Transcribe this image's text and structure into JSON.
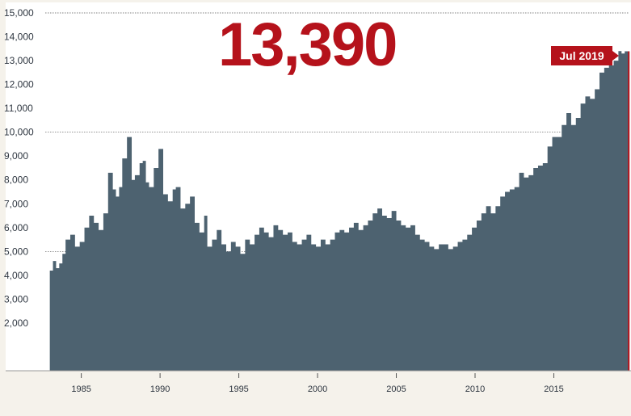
{
  "headline": {
    "value": "13,390",
    "date_label": "Jul 2019"
  },
  "colors": {
    "area": "#4d6270",
    "accent": "#b5121b",
    "panel": "#ffffff",
    "background": "#f5f2eb"
  },
  "chart_data": {
    "type": "area",
    "title": "",
    "xlabel": "",
    "ylabel": "",
    "xlim": [
      1982.3,
      2019.9
    ],
    "ylim": [
      0,
      15000
    ],
    "y_ticks": [
      "2,000",
      "3,000",
      "4,000",
      "5,000",
      "6,000",
      "7,000",
      "8,000",
      "9,000",
      "10,000",
      "11,000",
      "12,000",
      "13,000",
      "14,000",
      "15,000"
    ],
    "x_ticks": [
      "1985",
      "1990",
      "1995",
      "2000",
      "2005",
      "2010",
      "2015"
    ],
    "reference_lines": [
      5000,
      10000,
      15000
    ],
    "series": [
      {
        "x": [
          1983.0,
          1983.2,
          1983.4,
          1983.6,
          1983.8,
          1984.0,
          1984.3,
          1984.6,
          1984.9,
          1985.2,
          1985.5,
          1985.8,
          1986.1,
          1986.4,
          1986.7,
          1987.0,
          1987.2,
          1987.4,
          1987.6,
          1987.9,
          1988.2,
          1988.4,
          1988.7,
          1988.9,
          1989.1,
          1989.3,
          1989.6,
          1989.9,
          1990.2,
          1990.5,
          1990.8,
          1991.0,
          1991.3,
          1991.6,
          1991.9,
          1992.2,
          1992.5,
          1992.8,
          1993.0,
          1993.3,
          1993.6,
          1993.9,
          1994.2,
          1994.5,
          1994.8,
          1995.1,
          1995.4,
          1995.7,
          1996.0,
          1996.3,
          1996.6,
          1996.9,
          1997.2,
          1997.5,
          1997.8,
          1998.1,
          1998.4,
          1998.7,
          1999.0,
          1999.3,
          1999.6,
          1999.9,
          2000.2,
          2000.5,
          2000.8,
          2001.1,
          2001.4,
          2001.7,
          2002.0,
          2002.3,
          2002.6,
          2002.9,
          2003.2,
          2003.5,
          2003.8,
          2004.1,
          2004.4,
          2004.7,
          2005.0,
          2005.3,
          2005.6,
          2005.9,
          2006.2,
          2006.5,
          2006.8,
          2007.1,
          2007.4,
          2007.7,
          2008.0,
          2008.3,
          2008.6,
          2008.9,
          2009.2,
          2009.5,
          2009.8,
          2010.1,
          2010.4,
          2010.7,
          2011.0,
          2011.3,
          2011.6,
          2011.9,
          2012.2,
          2012.5,
          2012.8,
          2013.1,
          2013.4,
          2013.7,
          2014.0,
          2014.3,
          2014.6,
          2014.9,
          2015.2,
          2015.5,
          2015.8,
          2016.1,
          2016.4,
          2016.7,
          2017.0,
          2017.3,
          2017.6,
          2017.9,
          2018.2,
          2018.5,
          2018.8,
          2019.1,
          2019.3,
          2019.5
        ],
        "y": [
          4200,
          4600,
          4300,
          4500,
          4900,
          5500,
          5700,
          5200,
          5400,
          6000,
          6500,
          6200,
          5900,
          6600,
          8300,
          7600,
          7300,
          7700,
          8900,
          9800,
          8000,
          8200,
          8700,
          8800,
          7900,
          7700,
          8500,
          9300,
          7400,
          7100,
          7600,
          7700,
          6800,
          7000,
          7300,
          6200,
          5800,
          6500,
          5200,
          5500,
          5900,
          5300,
          5000,
          5400,
          5200,
          4900,
          5500,
          5300,
          5700,
          6000,
          5800,
          5600,
          6100,
          5900,
          5700,
          5800,
          5400,
          5300,
          5500,
          5700,
          5300,
          5200,
          5500,
          5300,
          5500,
          5800,
          5900,
          5800,
          6000,
          6200,
          5900,
          6100,
          6300,
          6600,
          6800,
          6500,
          6400,
          6700,
          6300,
          6100,
          6000,
          6100,
          5700,
          5500,
          5400,
          5200,
          5100,
          5300,
          5300,
          5100,
          5200,
          5400,
          5500,
          5700,
          6000,
          6300,
          6600,
          6900,
          6600,
          6900,
          7300,
          7500,
          7600,
          7700,
          8300,
          8100,
          8200,
          8500,
          8600,
          8700,
          9400,
          9800,
          9800,
          10300,
          10800,
          10300,
          10600,
          11200,
          11500,
          11400,
          11800,
          12500,
          12700,
          12800,
          13000,
          13400,
          13300,
          13390
        ]
      }
    ]
  }
}
